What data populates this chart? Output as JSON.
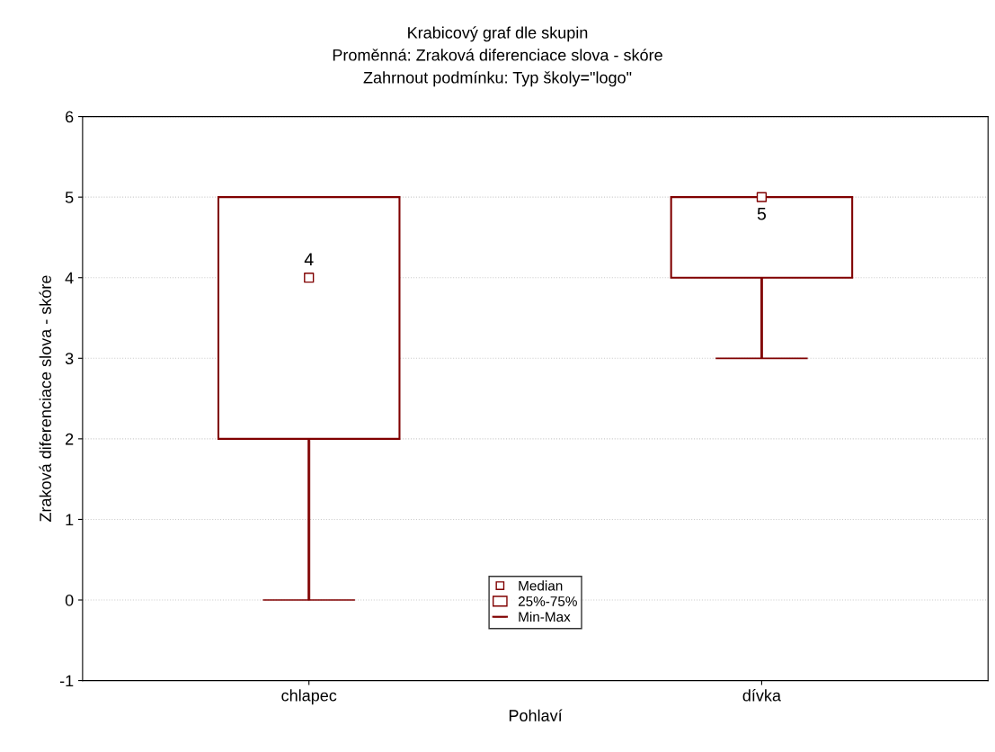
{
  "chart_data": {
    "type": "bar",
    "title": "Krabicový graf dle skupin",
    "subtitle": "Proměnná: Zraková diferenciace slova - skóre\nZahrnout podmínku: Typ školy=\"logo\"",
    "xlabel": "Pohlaví",
    "ylabel": "Zraková diferenciace slova - skóre",
    "categories": [
      "chlapec",
      "dívka"
    ],
    "series": [
      {
        "name": "Median",
        "type": "scatter",
        "marker": "square",
        "color": "#800000",
        "values": [
          4,
          5
        ],
        "value_labels": [
          "4",
          "5"
        ]
      },
      {
        "name": "25%-75%",
        "color": "#800000",
        "base": [
          2,
          4
        ],
        "values": [
          3,
          1
        ]
      },
      {
        "name": "Min-Max",
        "color": "#800000",
        "base": [
          0,
          3
        ],
        "values": [
          2,
          1
        ]
      }
    ],
    "ylim": [
      -1,
      6
    ],
    "yticks": [
      -1,
      0,
      1,
      2,
      3,
      4,
      5,
      6
    ],
    "grid": "y",
    "legend": "bottom"
  }
}
